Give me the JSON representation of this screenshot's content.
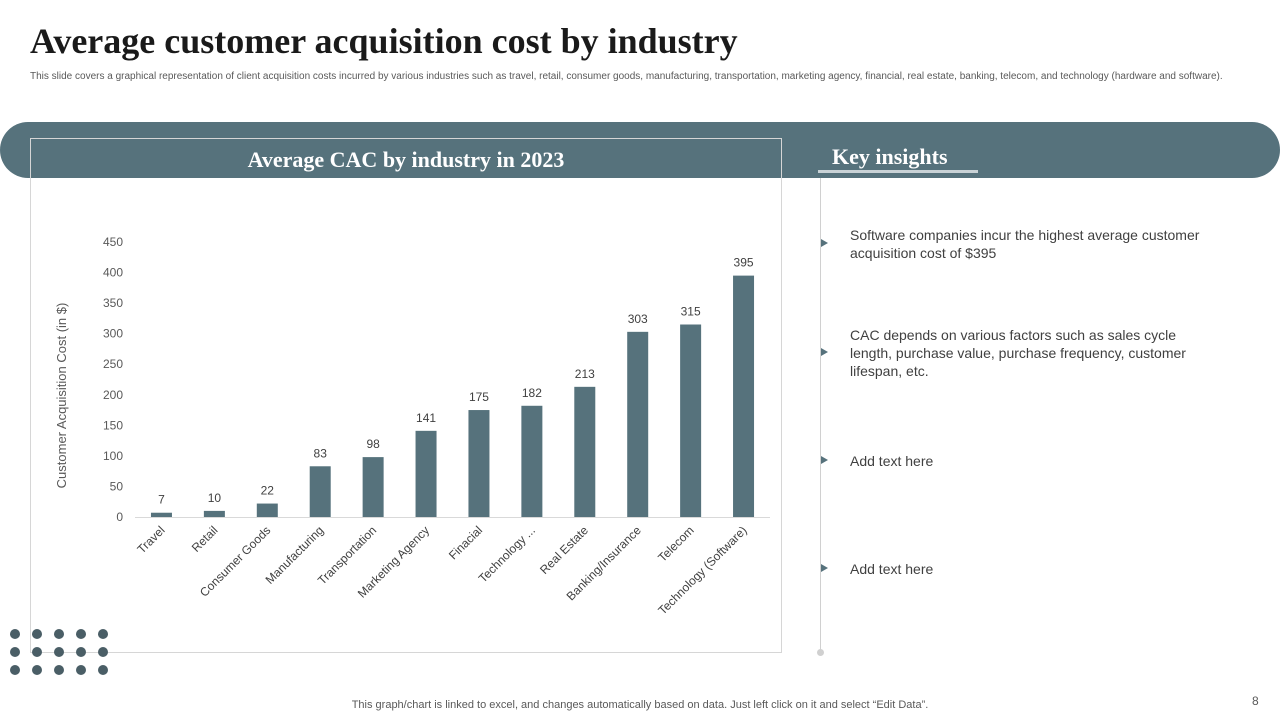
{
  "slide": {
    "title": "Average customer acquisition cost by industry",
    "subtitle": "This slide covers a graphical representation of client acquisition costs incurred by various industries such as travel, retail, consumer goods, manufacturing, transportation, marketing agency, financial, real estate, banking, telecom, and technology (hardware and software).",
    "footer_note": "This graph/chart is linked to excel,  and changes automatically based on data. Just left click on it and select “Edit Data”.",
    "page_number": "8"
  },
  "colors": {
    "accent": "#56727c",
    "bar": "#56727c",
    "dots": "#4a5e66"
  },
  "chart_data": {
    "type": "bar",
    "title": "Average CAC by industry in 2023",
    "xlabel": "",
    "ylabel": "Customer Acquisition Cost (in $)",
    "categories": [
      "Travel",
      "Retail",
      "Consumer Goods",
      "Manufacturing",
      "Transportation",
      "Marketing Agency",
      "Finacial",
      "Technology ...",
      "Real Estate",
      "Banking/Insurance",
      "Telecom",
      "Technology (Software)"
    ],
    "values": [
      7,
      10,
      22,
      83,
      98,
      141,
      175,
      182,
      213,
      303,
      315,
      395
    ],
    "ylim": [
      0,
      450
    ],
    "yticks": [
      0,
      50,
      100,
      150,
      200,
      250,
      300,
      350,
      400,
      450
    ],
    "grid": false,
    "data_labels": true
  },
  "insights": {
    "title": "Key insights",
    "items": [
      "Software companies incur the highest average customer acquisition cost of $395",
      "CAC depends on various factors such as sales cycle length, purchase value, purchase frequency, customer lifespan, etc.",
      "Add text here",
      "Add text here"
    ]
  }
}
